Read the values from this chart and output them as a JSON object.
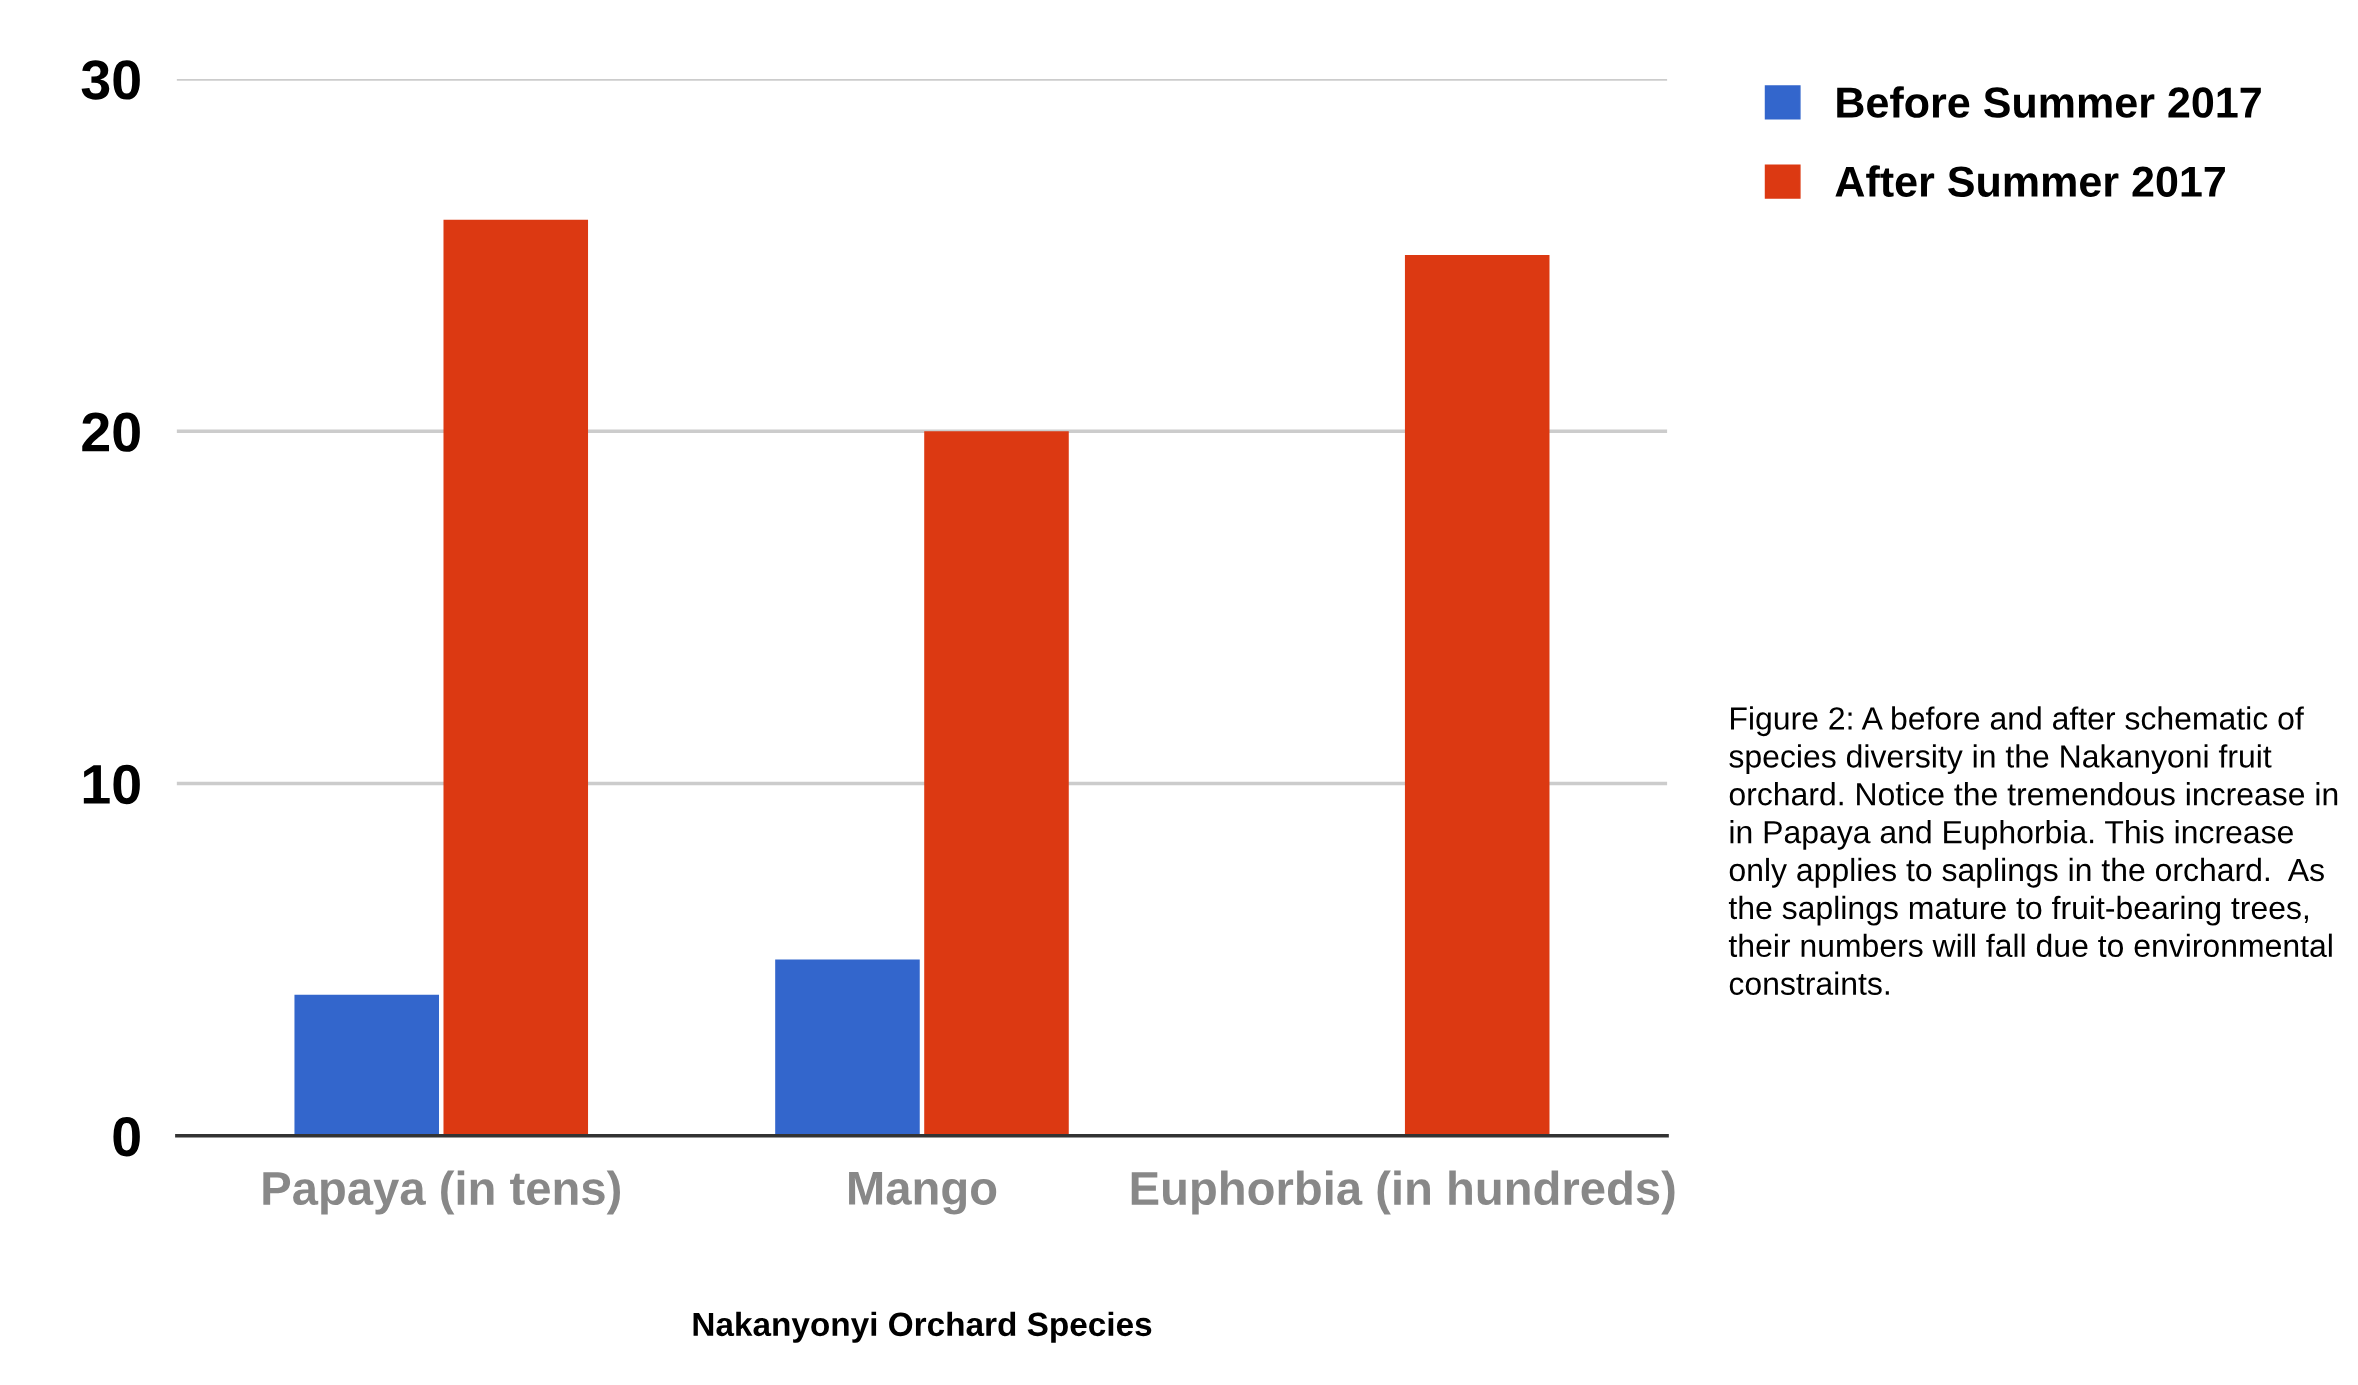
{
  "chart_data": {
    "type": "bar",
    "xlabel": "Nakanyonyi Orchard Species",
    "categories": [
      "Papaya (in tens)",
      "Mango",
      "Euphorbia (in hundreds)"
    ],
    "series": [
      {
        "name": "Before Summer 2017",
        "color": "#3366cc",
        "values": [
          4,
          5,
          0
        ]
      },
      {
        "name": "After Summer 2017",
        "color": "#dc3912",
        "values": [
          26,
          20,
          25
        ]
      }
    ],
    "ylim": [
      0,
      30
    ],
    "yticks": [
      0,
      10,
      20,
      30
    ],
    "grid": "y",
    "legend": "top right",
    "annotations": [
      "Figure 2: A before and after schematic of species diversity in the Nakanyoni fruit orchard. Notice the tremendous increase in in Papaya and Euphorbia. This increase only applies to saplings in the orchard.  As the saplings mature to fruit-bearing trees, their numbers will fall due to environmental constraints."
    ]
  }
}
